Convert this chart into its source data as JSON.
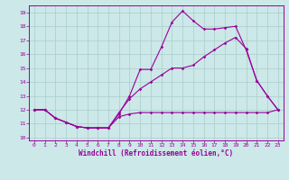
{
  "xlabel": "Windchill (Refroidissement éolien,°C)",
  "bg_color": "#cce8e8",
  "grid_color": "#aacccc",
  "line_color": "#990099",
  "xlim": [
    -0.5,
    23.5
  ],
  "ylim": [
    9.8,
    19.5
  ],
  "xticks": [
    0,
    1,
    2,
    3,
    4,
    5,
    6,
    7,
    8,
    9,
    10,
    11,
    12,
    13,
    14,
    15,
    16,
    17,
    18,
    19,
    20,
    21,
    22,
    23
  ],
  "yticks": [
    10,
    11,
    12,
    13,
    14,
    15,
    16,
    17,
    18,
    19
  ],
  "line1_x": [
    0,
    1,
    2,
    3,
    4,
    5,
    6,
    7,
    8,
    9,
    10,
    11,
    12,
    13,
    14,
    15,
    16,
    17,
    18,
    19,
    20,
    21,
    22,
    23
  ],
  "line1_y": [
    12,
    12,
    11.4,
    11.1,
    10.8,
    10.7,
    10.7,
    10.7,
    11.7,
    13.0,
    14.9,
    14.9,
    16.5,
    18.3,
    19.1,
    18.4,
    17.8,
    17.8,
    17.9,
    18.0,
    16.3,
    14.1,
    13.0,
    12.0
  ],
  "line2_x": [
    0,
    1,
    2,
    3,
    4,
    5,
    6,
    7,
    8,
    9,
    10,
    11,
    12,
    13,
    14,
    15,
    16,
    17,
    18,
    19,
    20,
    21,
    22,
    23
  ],
  "line2_y": [
    12.0,
    12.0,
    11.4,
    11.1,
    10.8,
    10.7,
    10.7,
    10.7,
    11.8,
    12.8,
    13.5,
    14.0,
    14.5,
    15.0,
    15.0,
    15.2,
    15.8,
    16.3,
    16.8,
    17.2,
    16.4,
    14.1,
    13.0,
    12.0
  ],
  "line3_x": [
    0,
    1,
    2,
    3,
    4,
    5,
    6,
    7,
    8,
    9,
    10,
    11,
    12,
    13,
    14,
    15,
    16,
    17,
    18,
    19,
    20,
    21,
    22,
    23
  ],
  "line3_y": [
    12.0,
    12.0,
    11.4,
    11.1,
    10.8,
    10.7,
    10.7,
    10.7,
    11.5,
    11.7,
    11.8,
    11.8,
    11.8,
    11.8,
    11.8,
    11.8,
    11.8,
    11.8,
    11.8,
    11.8,
    11.8,
    11.8,
    11.8,
    12.0
  ],
  "marker": "D",
  "markersize": 1.8,
  "linewidth": 0.8,
  "tick_fontsize": 4.5,
  "label_fontsize": 5.5
}
